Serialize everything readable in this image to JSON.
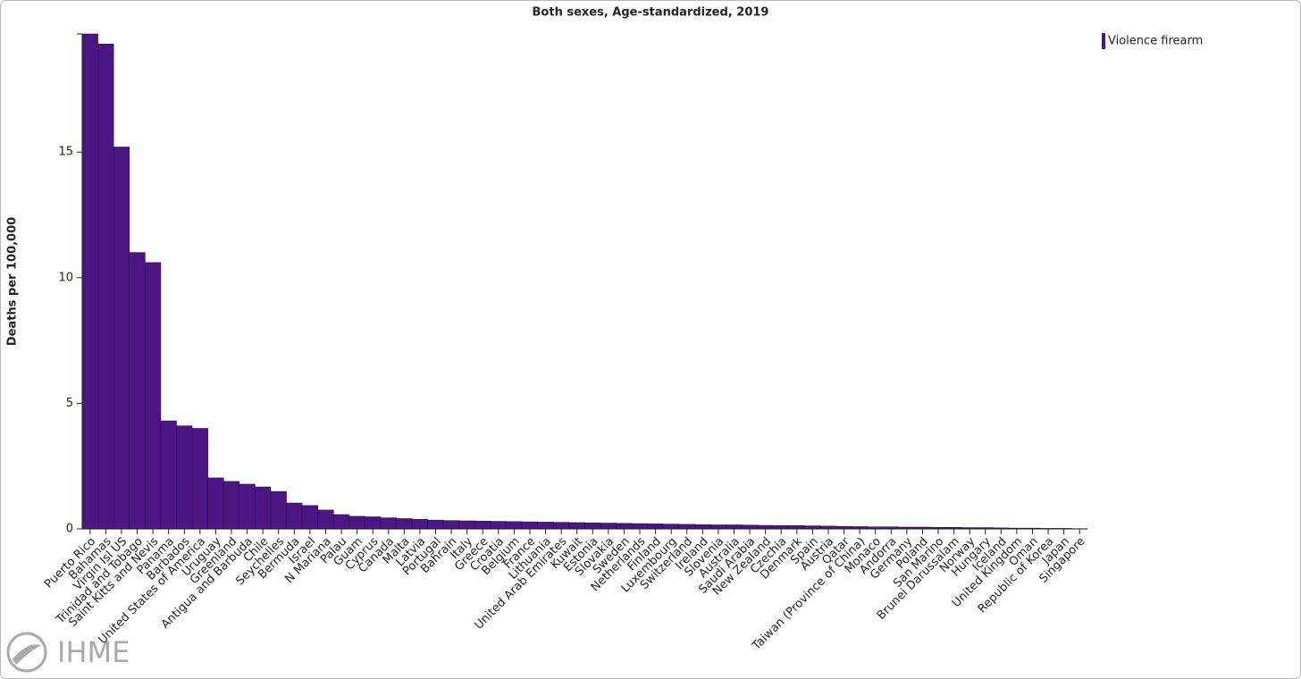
{
  "chart_data": {
    "type": "bar",
    "title": "Both sexes, Age-standardized, 2019",
    "y_label": "Deaths per 100,000",
    "logo_text": "IHME",
    "categories": [
      "Puerto Rico",
      "Bahamas",
      "Virgin Isl US",
      "Trinidad and Tobago",
      "Saint Kitts and Nevis",
      "Panama",
      "Barbados",
      "United States of America",
      "Uruguay",
      "Greenland",
      "Antigua and Barbuda",
      "Chile",
      "Seychelles",
      "Bermuda",
      "Israel",
      "N Mariana",
      "Palau",
      "Guam",
      "Cyprus",
      "Canada",
      "Malta",
      "Latvia",
      "Portugal",
      "Bahrain",
      "Italy",
      "Greece",
      "Croatia",
      "Belgium",
      "France",
      "Lithuania",
      "United Arab Emirates",
      "Kuwait",
      "Estonia",
      "Slovakia",
      "Sweden",
      "Netherlands",
      "Finland",
      "Luxembourg",
      "Switzerland",
      "Ireland",
      "Slovenia",
      "Australia",
      "Saudi Arabia",
      "New Zealand",
      "Czechia",
      "Denmark",
      "Spain",
      "Austria",
      "Qatar",
      "Taiwan (Province of China)",
      "Monaco",
      "Andorra",
      "Germany",
      "Poland",
      "San Marino",
      "Brunei Darussalam",
      "Norway",
      "Hungary",
      "Iceland",
      "United Kingdom",
      "Oman",
      "Republic of Korea",
      "Japan",
      "Singapore"
    ],
    "series": [
      {
        "name": "Violence firearm",
        "color": "#4b1684",
        "values": [
          19.7,
          19.3,
          15.2,
          11.0,
          10.6,
          4.3,
          4.1,
          4.0,
          2.03,
          1.89,
          1.78,
          1.67,
          1.49,
          1.03,
          0.93,
          0.75,
          0.57,
          0.5,
          0.48,
          0.44,
          0.41,
          0.38,
          0.35,
          0.33,
          0.32,
          0.31,
          0.3,
          0.29,
          0.28,
          0.27,
          0.26,
          0.25,
          0.24,
          0.23,
          0.22,
          0.21,
          0.2,
          0.19,
          0.18,
          0.17,
          0.16,
          0.16,
          0.15,
          0.14,
          0.13,
          0.13,
          0.12,
          0.11,
          0.1,
          0.09,
          0.08,
          0.08,
          0.07,
          0.07,
          0.06,
          0.06,
          0.05,
          0.05,
          0.04,
          0.03,
          0.03,
          0.02,
          0.02,
          0.01
        ]
      }
    ],
    "ylim": [
      0,
      19.7
    ],
    "yticks": [
      0,
      5,
      10,
      15
    ],
    "legend": "top-right"
  }
}
